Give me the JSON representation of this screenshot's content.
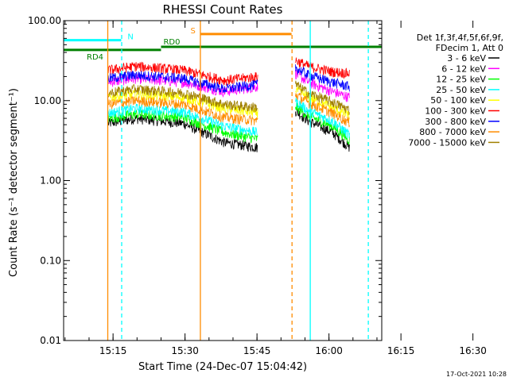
{
  "chart_data": {
    "type": "line",
    "title": "RHESSI Count Rates",
    "xlabel": "Start Time (24-Dec-07 15:04:42)",
    "ylabel": "Count Rate (s⁻¹ detector segment⁻¹)",
    "y_scale": "log",
    "ylim": [
      0.01,
      100
    ],
    "xlim_minutes": [
      0,
      66.3
    ],
    "x_ticks": [
      "15:15",
      "15:30",
      "15:45",
      "16:00",
      "16:15",
      "16:30"
    ],
    "y_ticks": [
      "0.01",
      "0.10",
      "1.00",
      "10.00",
      "100.00"
    ],
    "timestamp": "17-Oct-2021 10:28",
    "legend_header": [
      "Det 1f,3f,4f,5f,6f,9f,",
      "FDecim 1, Att 0"
    ],
    "legend_placement": "right",
    "series": [
      {
        "name": "3 - 6 keV",
        "color": "#000000",
        "segA": [
          5.2,
          6.0,
          5.2,
          3.0,
          2.6
        ],
        "segB": [
          7.5,
          5.6,
          4.0,
          2.6
        ]
      },
      {
        "name": "6 - 12 keV",
        "color": "#ff00ff",
        "segA": [
          17.0,
          19.0,
          17.0,
          13.0,
          15.0
        ],
        "segB": [
          22.0,
          17.0,
          13.0,
          11.0
        ]
      },
      {
        "name": "12 - 25 keV",
        "color": "#00ff00",
        "segA": [
          6.0,
          6.8,
          6.2,
          4.0,
          3.3
        ],
        "segB": [
          8.5,
          6.5,
          4.8,
          3.2
        ]
      },
      {
        "name": "25 - 50 keV",
        "color": "#00ffff",
        "segA": [
          7.0,
          8.0,
          7.2,
          4.8,
          4.0
        ],
        "segB": [
          10.0,
          7.5,
          5.6,
          3.7
        ]
      },
      {
        "name": "50 - 100 keV",
        "color": "#ffff00",
        "segA": [
          11.0,
          12.0,
          11.0,
          8.0,
          7.0
        ],
        "segB": [
          14.0,
          11.0,
          8.2,
          6.4
        ]
      },
      {
        "name": "100 - 300 keV",
        "color": "#ff0000",
        "segA": [
          24.0,
          27.0,
          24.0,
          18.0,
          20.0
        ],
        "segB": [
          32.0,
          27.0,
          23.0,
          22.0
        ]
      },
      {
        "name": "300 - 800 keV",
        "color": "#0000ff",
        "segA": [
          19.0,
          21.0,
          19.0,
          14.0,
          16.0
        ],
        "segB": [
          26.0,
          21.0,
          17.0,
          15.0
        ]
      },
      {
        "name": "800 - 7000 keV",
        "color": "#ff8c00",
        "segA": [
          9.0,
          10.0,
          9.0,
          6.2,
          5.6
        ],
        "segB": [
          12.0,
          9.5,
          7.0,
          5.3
        ]
      },
      {
        "name": "7000 - 15000 keV",
        "color": "#a08000",
        "segA": [
          12.5,
          14.0,
          12.5,
          9.0,
          8.2
        ],
        "segB": [
          16.0,
          12.5,
          9.6,
          7.6
        ]
      }
    ],
    "segment_times_minutes": {
      "segA": [
        9.3,
        15.0,
        25.0,
        33.5,
        40.5
      ],
      "segB": [
        48.3,
        51.0,
        56.0,
        59.6
      ]
    },
    "annotations": [
      {
        "label": "RD4",
        "color": "#008000",
        "y": 43,
        "x_start": 0,
        "x_end": 20.3
      },
      {
        "label": "RD0",
        "color": "#008000",
        "y": 47,
        "x_start": 20.3,
        "x_end": 66.3
      },
      {
        "label": "N",
        "color": "#00ffff",
        "y": 57,
        "x_start": 0,
        "x_end": 12
      },
      {
        "label": "S",
        "color": "#ff8c00",
        "y": 68,
        "x_start": 28.6,
        "x_end": 47.5
      }
    ],
    "vlines": [
      {
        "x": 9.2,
        "color": "#ff8c00",
        "style": "solid"
      },
      {
        "x": 12.1,
        "color": "#00ffff",
        "style": "dashed"
      },
      {
        "x": 28.5,
        "color": "#ff8c00",
        "style": "solid"
      },
      {
        "x": 47.6,
        "color": "#ff8c00",
        "style": "dashed"
      },
      {
        "x": 51.4,
        "color": "#00ffff",
        "style": "solid"
      },
      {
        "x": 63.5,
        "color": "#00ffff",
        "style": "dashed"
      }
    ]
  }
}
